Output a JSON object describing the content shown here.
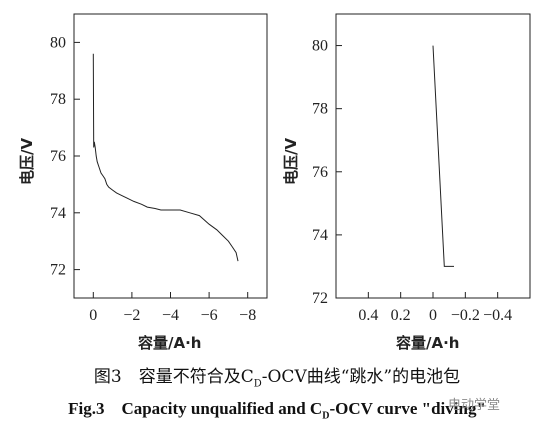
{
  "chart_data": [
    {
      "type": "line",
      "xlabel": "容量/A·h",
      "ylabel": "电压/V",
      "xlim": [
        1,
        -9
      ],
      "ylim": [
        71.0,
        81.0
      ],
      "x_ticks": [
        0,
        -2,
        -4,
        -6,
        -8
      ],
      "x_tick_labels": [
        "0",
        "−2",
        "−4",
        "−6",
        "−8"
      ],
      "y_ticks": [
        72,
        74,
        76,
        78,
        80
      ],
      "x_axis_reversed": true,
      "grid": false,
      "series": [
        {
          "x": [
            0.0,
            -0.02,
            -0.05,
            -0.1,
            -0.15,
            -0.2,
            -0.3,
            -0.4,
            -0.5,
            -0.6,
            -0.7,
            -0.8,
            -1.0,
            -1.2,
            -1.5,
            -1.8,
            -2.1,
            -2.5,
            -2.8,
            -3.2,
            -3.5,
            -4.0,
            -4.5,
            -5.0,
            -5.5,
            -6.0,
            -6.4,
            -6.7,
            -7.0,
            -7.2,
            -7.4,
            -7.5
          ],
          "y": [
            79.6,
            76.3,
            76.5,
            76.3,
            76.0,
            75.8,
            75.6,
            75.4,
            75.3,
            75.2,
            75.0,
            74.9,
            74.8,
            74.7,
            74.6,
            74.5,
            74.4,
            74.3,
            74.2,
            74.15,
            74.1,
            74.1,
            74.1,
            74.0,
            73.9,
            73.6,
            73.4,
            73.2,
            73.0,
            72.8,
            72.6,
            72.3
          ]
        }
      ]
    },
    {
      "type": "line",
      "xlabel": "容量/A·h",
      "ylabel": "电压/V",
      "xlim": [
        0.6,
        -0.6
      ],
      "ylim": [
        72.0,
        81.0
      ],
      "x_ticks": [
        0.4,
        0.2,
        0,
        -0.2,
        -0.4
      ],
      "x_tick_labels": [
        "0.4",
        "0.2",
        "0",
        "−0.2",
        "−0.4"
      ],
      "y_ticks": [
        72,
        74,
        76,
        78,
        80
      ],
      "x_axis_reversed": true,
      "grid": false,
      "series": [
        {
          "x": [
            0.0,
            -0.07,
            -0.09,
            -0.13
          ],
          "y": [
            80.0,
            73.0,
            73.0,
            73.0
          ]
        }
      ]
    }
  ],
  "caption": {
    "cn_prefix": "图3　容量不符合及C",
    "cn_sub": "D",
    "cn_suffix": "-OCV曲线“跳水”的电池包",
    "en_prefix": "Fig.3　Capacity unqualified and C",
    "en_sub": "D",
    "en_suffix": "-OCV curve \"diving\""
  },
  "watermark": "电动学堂"
}
